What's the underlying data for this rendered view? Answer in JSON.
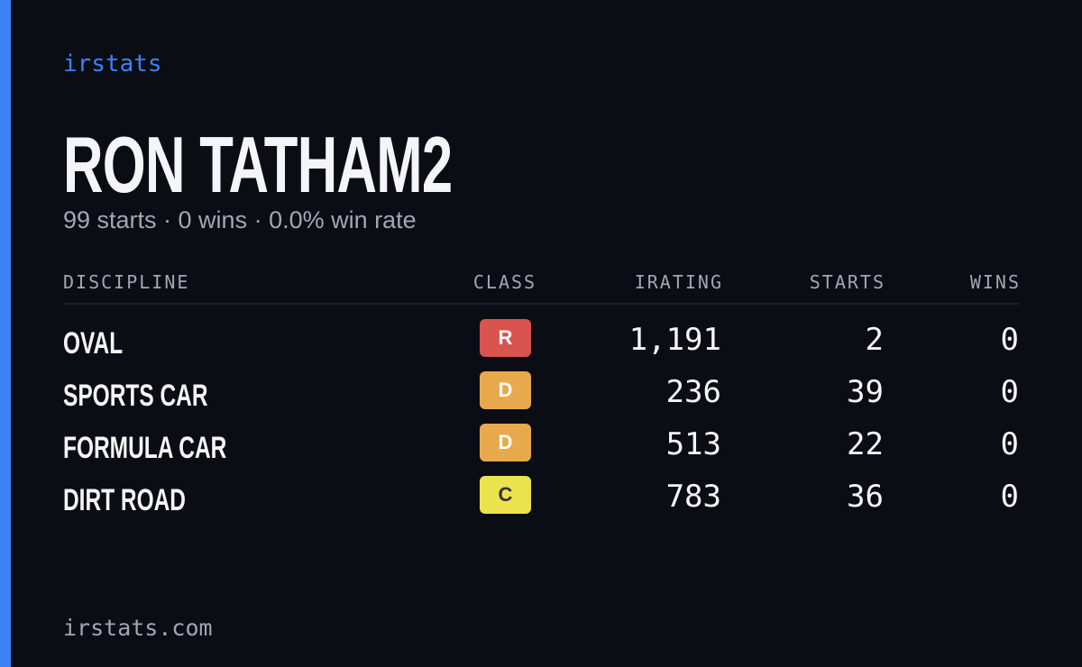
{
  "brand": "irstats",
  "title": "RON TATHAM2",
  "subtitle": "99 starts · 0 wins · 0.0% win rate",
  "table": {
    "headers": [
      "DISCIPLINE",
      "CLASS",
      "IRATING",
      "STARTS",
      "WINS"
    ],
    "rows": [
      [
        "OVAL",
        "R",
        "1,191",
        "2",
        "0"
      ],
      [
        "SPORTS CAR",
        "D",
        "236",
        "39",
        "0"
      ],
      [
        "FORMULA CAR",
        "D",
        "513",
        "22",
        "0"
      ],
      [
        "DIRT ROAD",
        "C",
        "783",
        "36",
        "0"
      ]
    ]
  },
  "footer": "irstats.com"
}
